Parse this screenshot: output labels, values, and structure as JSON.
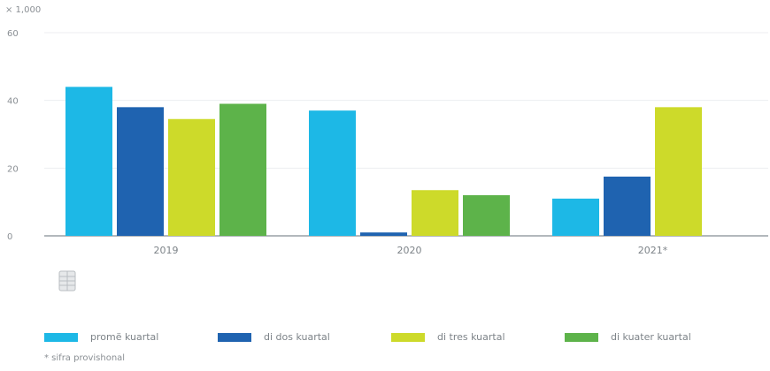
{
  "chart_data": {
    "type": "bar",
    "unit_label": "× 1,000",
    "categories": [
      "2019",
      "2020",
      "2021*"
    ],
    "series": [
      {
        "name": "promë kuartal",
        "color": "#1db8e6",
        "values": [
          44,
          37,
          11
        ]
      },
      {
        "name": "di dos kuartal",
        "color": "#1f63b0",
        "values": [
          38,
          1,
          17.5
        ]
      },
      {
        "name": "di tres kuartal",
        "color": "#cdda2a",
        "values": [
          34.5,
          13.5,
          38
        ]
      },
      {
        "name": "di kuater kuartal",
        "color": "#5db34a",
        "values": [
          39,
          12,
          null
        ]
      }
    ],
    "yticks": [
      0,
      20,
      40,
      60
    ],
    "ylim": [
      0,
      60
    ],
    "grid": true,
    "legend_position": "bottom",
    "footnote": "* sifra provishonal"
  },
  "icons": {
    "table": "table-icon"
  }
}
